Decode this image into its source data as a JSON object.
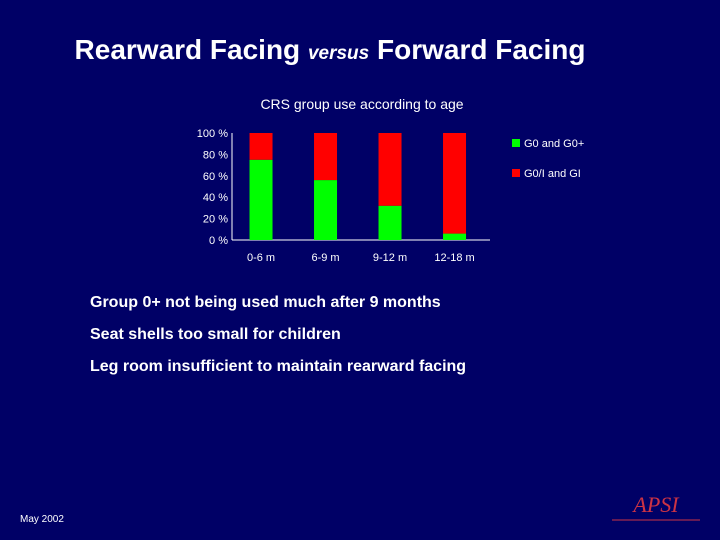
{
  "slide": {
    "title_part1": "Rearward Facing ",
    "title_part2": "versus",
    "title_part3": " Forward Facing",
    "bullets": [
      "Group 0+ not being used much after 9 months",
      "Seat shells too small for children",
      "Leg room insufficient to maintain rearward facing"
    ],
    "footer_date": "May 2002",
    "logo_text": "APSI"
  },
  "colors": {
    "background": "#000066",
    "series_g0": "#00ff00",
    "series_g0i": "#ff0000"
  },
  "chart_data": {
    "type": "bar",
    "stacked": true,
    "title": "CRS group use according to age",
    "categories": [
      "0-6 m",
      "6-9 m",
      "9-12 m",
      "12-18 m"
    ],
    "series": [
      {
        "name": "G0 and G0+",
        "values": [
          75,
          56,
          32,
          6
        ],
        "color": "#00ff00"
      },
      {
        "name": "G0/I and GI",
        "values": [
          25,
          44,
          68,
          94
        ],
        "color": "#ff0000"
      }
    ],
    "ylim": [
      0,
      100
    ],
    "yticks": [
      "0 %",
      "20 %",
      "40 %",
      "60 %",
      "80 %",
      "100 %"
    ],
    "xlabel": "",
    "ylabel": "",
    "legend_position": "right"
  }
}
